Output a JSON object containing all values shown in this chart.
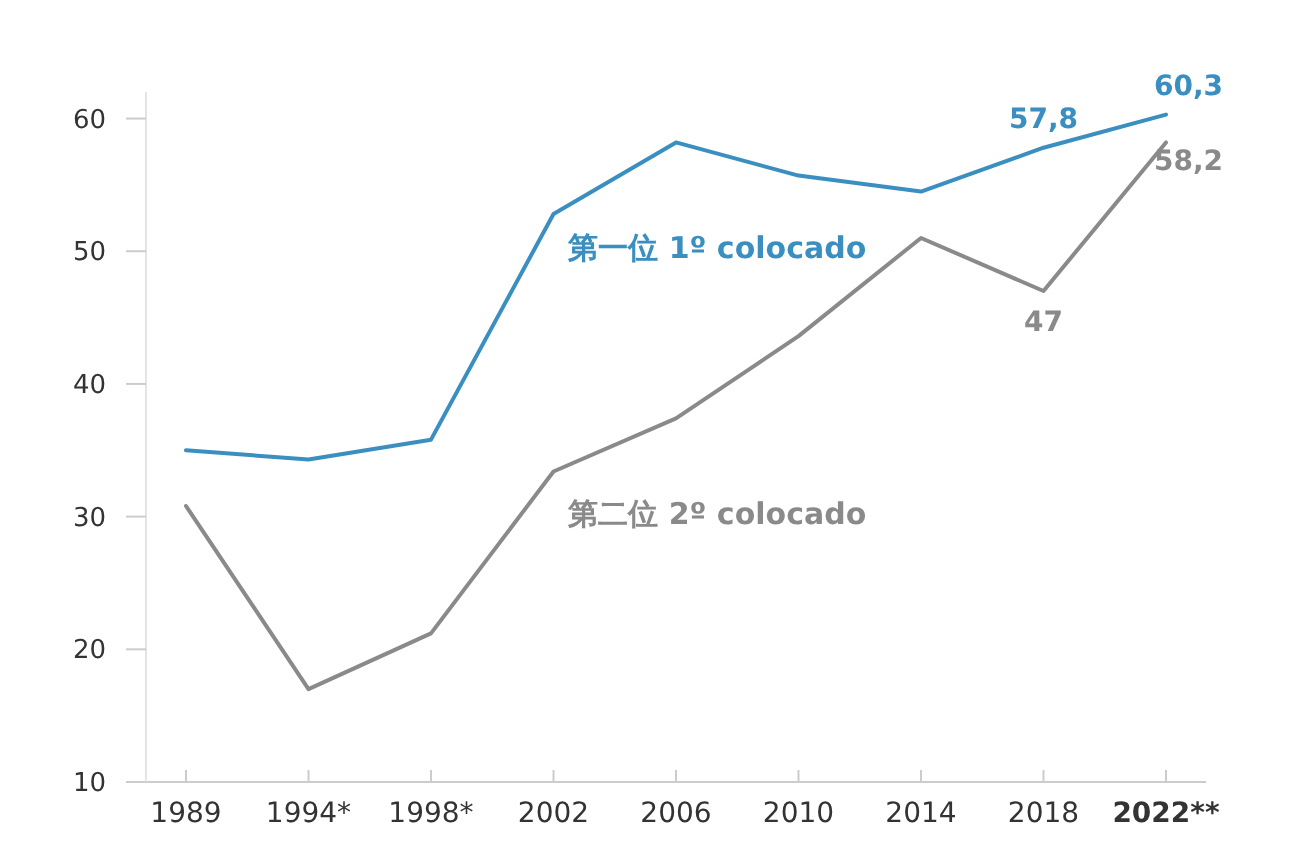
{
  "chart_data": {
    "type": "line",
    "categories": [
      "1989",
      "1994*",
      "1998*",
      "2002",
      "2006",
      "2010",
      "2014",
      "2018",
      "2022**"
    ],
    "ylim": [
      10,
      62
    ],
    "yticks": [
      10,
      20,
      30,
      40,
      50,
      60
    ],
    "grid": false,
    "legend": false,
    "marker": "none",
    "line_style": "solid",
    "series": [
      {
        "name": "第一位 1º colocado",
        "color": "#3a8fc0",
        "values": [
          35,
          34.3,
          35.8,
          52.8,
          58.2,
          55.7,
          54.5,
          57.8,
          60.3
        ],
        "value_labels": [
          null,
          null,
          null,
          null,
          null,
          null,
          null,
          "57,8",
          "60,3"
        ]
      },
      {
        "name": "第二位 2º colocado",
        "color": "#8a8a8a",
        "values": [
          30.8,
          17,
          21.2,
          33.4,
          37.4,
          43.6,
          51,
          47,
          58.2
        ],
        "value_labels": [
          null,
          null,
          null,
          null,
          null,
          null,
          null,
          "47",
          "58,2"
        ]
      }
    ]
  }
}
